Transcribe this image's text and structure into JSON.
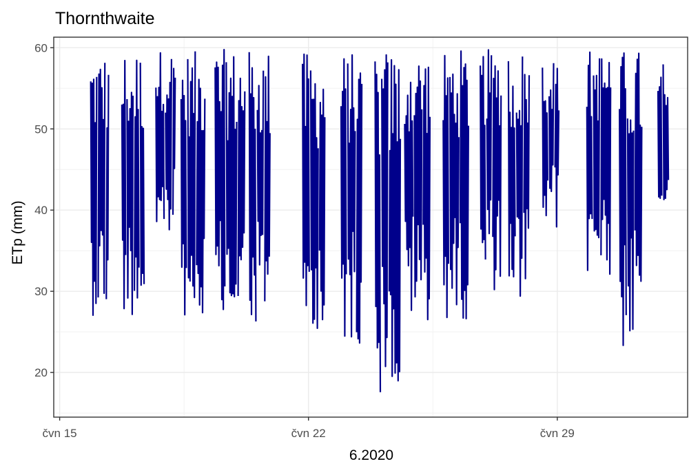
{
  "chart_data": {
    "type": "line",
    "title": "Thornthwaite",
    "xlabel": "6.2020",
    "ylabel": "ETp (mm)",
    "xlim": [
      "2020-06-14T20:00",
      "2020-07-02T16:00"
    ],
    "ylim": [
      14.5,
      61.3
    ],
    "x_ticks": [
      {
        "date": "2020-06-15",
        "label": "čvn 15"
      },
      {
        "date": "2020-06-22",
        "label": "čvn 22"
      },
      {
        "date": "2020-06-29",
        "label": "čvn 29"
      }
    ],
    "x_minor_gridlines": [
      "2020-06-18T12:00",
      "2020-06-25T12:00"
    ],
    "y_ticks": [
      20,
      30,
      40,
      50,
      60
    ],
    "grid": true,
    "series": [
      {
        "color": "#00008B",
        "segments": [
          {
            "start": "2020-06-15T21:00",
            "end": "2020-06-16T09:00",
            "min": 27,
            "max": 59.5,
            "gaps": [
              "2020-06-16T01:30",
              "2020-06-16T07:00"
            ]
          },
          {
            "start": "2020-06-16T18:00",
            "end": "2020-06-17T09:00",
            "min": 26.8,
            "max": 59.8,
            "gaps": [
              "2020-06-16T21:00",
              "2020-06-17T02:00",
              "2020-06-17T06:00"
            ]
          },
          {
            "start": "2020-06-17T17:00",
            "end": "2020-06-18T06:00",
            "min": 35.7,
            "max": 59.8,
            "gaps": [
              "2020-06-17T23:00",
              "2020-06-18T04:00"
            ]
          },
          {
            "start": "2020-06-18T10:00",
            "end": "2020-06-19T02:00",
            "min": 26.5,
            "max": 59.6,
            "gaps": [
              "2020-06-18T14:00",
              "2020-06-18T20:00"
            ]
          },
          {
            "start": "2020-06-19T09:00",
            "end": "2020-06-20T05:00",
            "min": 24.9,
            "max": 59.8,
            "gaps": [
              "2020-06-19T16:00",
              "2020-06-20T00:00"
            ]
          },
          {
            "start": "2020-06-20T08:00",
            "end": "2020-06-20T22:00",
            "min": 24.7,
            "max": 59.8,
            "gaps": [
              "2020-06-20T13:00",
              "2020-06-20T18:00"
            ]
          },
          {
            "start": "2020-06-21T20:00",
            "end": "2020-06-22T11:00",
            "min": 22.0,
            "max": 59.4,
            "gaps": [
              "2020-06-22T01:00",
              "2020-06-22T07:00"
            ]
          },
          {
            "start": "2020-06-22T22:00",
            "end": "2020-06-23T12:00",
            "min": 23.5,
            "max": 59.4,
            "gaps": [
              "2020-06-23T02:00",
              "2020-06-23T08:00"
            ]
          },
          {
            "start": "2020-06-23T21:00",
            "end": "2020-06-24T14:00",
            "min": 16.0,
            "max": 59.8,
            "gaps": [
              "2020-06-24T01:00",
              "2020-06-24T06:00"
            ]
          },
          {
            "start": "2020-06-24T17:00",
            "end": "2020-06-25T10:00",
            "min": 26.4,
            "max": 59.8,
            "gaps": [
              "2020-06-24T23:00",
              "2020-06-25T05:00"
            ]
          },
          {
            "start": "2020-06-25T19:00",
            "end": "2020-06-26T12:00",
            "min": 26.4,
            "max": 59.8,
            "gaps": [
              "2020-06-25T23:00",
              "2020-06-26T06:00"
            ]
          },
          {
            "start": "2020-06-26T20:00",
            "end": "2020-06-27T10:00",
            "min": 30.0,
            "max": 59.8,
            "gaps": [
              "2020-06-27T00:00",
              "2020-06-27T04:00"
            ]
          },
          {
            "start": "2020-06-27T15:00",
            "end": "2020-06-28T05:00",
            "min": 27.4,
            "max": 59.8,
            "gaps": [
              "2020-06-27T20:00",
              "2020-06-28T01:00"
            ]
          },
          {
            "start": "2020-06-28T14:00",
            "end": "2020-06-29T01:00",
            "min": 37.4,
            "max": 58.8,
            "gaps": [
              "2020-06-28T18:00",
              "2020-06-28T22:00"
            ]
          },
          {
            "start": "2020-06-29T20:00",
            "end": "2020-06-30T12:00",
            "min": 31.7,
            "max": 59.8,
            "gaps": [
              "2020-06-30T00:00",
              "2020-06-30T05:00"
            ]
          },
          {
            "start": "2020-06-30T18:00",
            "end": "2020-07-01T09:00",
            "min": 22.8,
            "max": 59.8,
            "gaps": [
              "2020-06-30T23:00",
              "2020-07-01T04:00"
            ]
          },
          {
            "start": "2020-07-01T20:00",
            "end": "2020-07-02T03:00",
            "min": 39.5,
            "max": 58.4,
            "gaps": [
              "2020-07-01T23:00"
            ]
          }
        ]
      }
    ]
  }
}
